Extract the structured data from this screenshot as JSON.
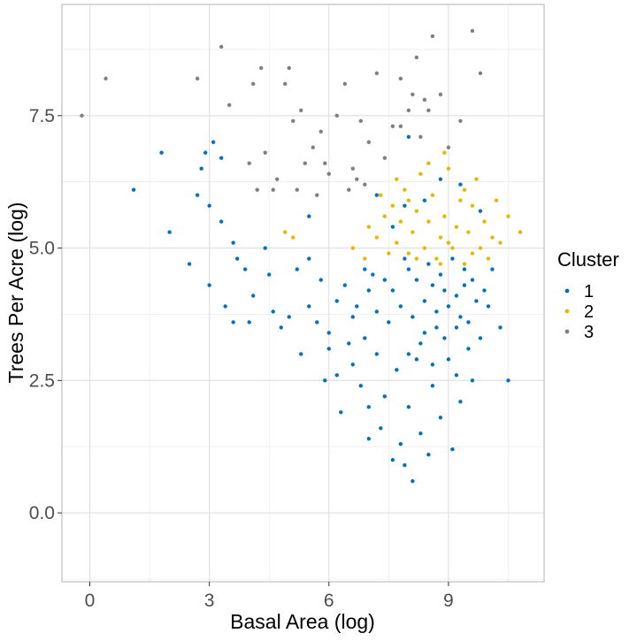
{
  "chart_data": {
    "type": "scatter",
    "title": "",
    "xlabel": "Basal Area (log)",
    "ylabel": "Trees Per Acre (log)",
    "xlim": [
      -0.7,
      11.4
    ],
    "ylim": [
      -1.3,
      9.6
    ],
    "x_ticks": [
      0,
      3,
      6,
      9
    ],
    "x_tick_labels": [
      "0",
      "3",
      "6",
      "9"
    ],
    "y_ticks": [
      0.0,
      2.5,
      5.0,
      7.5
    ],
    "y_tick_labels": [
      "0.0",
      "2.5",
      "5.0",
      "7.5"
    ],
    "grid": true,
    "legend_title": "Cluster",
    "legend_position": "right",
    "series": [
      {
        "name": "1",
        "color": "#0072BD",
        "points": [
          [
            1.1,
            6.1
          ],
          [
            1.8,
            6.8
          ],
          [
            2.0,
            5.3
          ],
          [
            2.5,
            4.7
          ],
          [
            2.7,
            6.0
          ],
          [
            2.8,
            6.5
          ],
          [
            2.9,
            6.8
          ],
          [
            3.0,
            5.8
          ],
          [
            3.0,
            4.3
          ],
          [
            3.1,
            7.0
          ],
          [
            3.3,
            5.5
          ],
          [
            3.4,
            3.9
          ],
          [
            3.6,
            3.6
          ],
          [
            3.6,
            5.1
          ],
          [
            3.7,
            4.8
          ],
          [
            3.9,
            4.6
          ],
          [
            4.1,
            4.1
          ],
          [
            4.4,
            5.0
          ],
          [
            4.5,
            4.5
          ],
          [
            4.6,
            3.8
          ],
          [
            5.0,
            3.7
          ],
          [
            5.2,
            4.6
          ],
          [
            5.3,
            3.0
          ],
          [
            5.5,
            4.8
          ],
          [
            5.8,
            4.4
          ],
          [
            5.7,
            3.6
          ],
          [
            6.0,
            3.4
          ],
          [
            6.2,
            2.6
          ],
          [
            6.4,
            4.3
          ],
          [
            6.5,
            3.2
          ],
          [
            6.6,
            2.8
          ],
          [
            6.7,
            3.9
          ],
          [
            6.8,
            2.4
          ],
          [
            6.9,
            3.3
          ],
          [
            7.0,
            2.0
          ],
          [
            7.1,
            4.5
          ],
          [
            7.2,
            3.0
          ],
          [
            7.3,
            1.6
          ],
          [
            7.4,
            2.2
          ],
          [
            7.5,
            3.6
          ],
          [
            7.6,
            1.0
          ],
          [
            7.7,
            2.7
          ],
          [
            7.8,
            1.3
          ],
          [
            7.9,
            0.9
          ],
          [
            8.0,
            2.0
          ],
          [
            8.1,
            0.6
          ],
          [
            8.2,
            2.9
          ],
          [
            8.3,
            1.5
          ],
          [
            8.4,
            3.4
          ],
          [
            8.5,
            1.1
          ],
          [
            8.6,
            2.4
          ],
          [
            8.7,
            3.8
          ],
          [
            8.8,
            1.8
          ],
          [
            8.9,
            4.2
          ],
          [
            9.0,
            2.9
          ],
          [
            9.1,
            1.2
          ],
          [
            9.2,
            3.5
          ],
          [
            9.3,
            2.1
          ],
          [
            9.4,
            4.6
          ],
          [
            9.5,
            3.1
          ],
          [
            9.6,
            2.5
          ],
          [
            9.7,
            4.0
          ],
          [
            9.8,
            3.3
          ],
          [
            10.0,
            3.9
          ],
          [
            10.1,
            4.6
          ],
          [
            10.3,
            3.5
          ],
          [
            10.5,
            2.5
          ],
          [
            7.9,
            4.8
          ],
          [
            8.2,
            4.4
          ],
          [
            8.5,
            4.7
          ],
          [
            8.8,
            4.5
          ],
          [
            9.1,
            4.8
          ],
          [
            9.4,
            4.3
          ],
          [
            7.8,
            3.9
          ],
          [
            8.1,
            3.7
          ],
          [
            8.4,
            4.0
          ],
          [
            8.7,
            3.5
          ],
          [
            9.0,
            3.9
          ],
          [
            9.3,
            3.7
          ],
          [
            7.6,
            4.2
          ],
          [
            8.0,
            4.6
          ],
          [
            8.6,
            4.3
          ],
          [
            9.2,
            4.1
          ],
          [
            9.6,
            4.4
          ],
          [
            9.9,
            4.2
          ],
          [
            8.3,
            3.2
          ],
          [
            8.9,
            3.3
          ],
          [
            9.5,
            3.6
          ],
          [
            8.0,
            3.0
          ],
          [
            8.6,
            2.8
          ],
          [
            9.2,
            2.6
          ],
          [
            6.2,
            4.0
          ],
          [
            6.6,
            3.7
          ],
          [
            7.0,
            4.2
          ],
          [
            7.4,
            4.4
          ],
          [
            7.2,
            3.8
          ],
          [
            6.9,
            4.6
          ],
          [
            4.8,
            3.5
          ],
          [
            5.5,
            3.9
          ],
          [
            6.0,
            3.1
          ],
          [
            5.9,
            2.5
          ],
          [
            6.3,
            1.9
          ],
          [
            7.0,
            1.4
          ],
          [
            7.6,
            5.4
          ],
          [
            7.9,
            5.8
          ],
          [
            8.4,
            5.9
          ],
          [
            8.8,
            6.3
          ],
          [
            9.3,
            6.2
          ],
          [
            9.8,
            5.7
          ],
          [
            5.5,
            5.6
          ],
          [
            4.0,
            3.6
          ],
          [
            8.0,
            7.1
          ],
          [
            7.2,
            6.0
          ],
          [
            3.3,
            6.7
          ]
        ]
      },
      {
        "name": "2",
        "color": "#E5B800",
        "points": [
          [
            4.9,
            5.3
          ],
          [
            5.1,
            5.2
          ],
          [
            6.6,
            5.0
          ],
          [
            6.9,
            4.8
          ],
          [
            7.0,
            5.4
          ],
          [
            7.2,
            5.2
          ],
          [
            7.4,
            5.6
          ],
          [
            7.5,
            4.9
          ],
          [
            7.6,
            5.8
          ],
          [
            7.7,
            5.1
          ],
          [
            7.8,
            5.5
          ],
          [
            7.9,
            6.1
          ],
          [
            8.0,
            4.9
          ],
          [
            8.1,
            5.3
          ],
          [
            8.2,
            5.7
          ],
          [
            8.3,
            6.4
          ],
          [
            8.4,
            5.0
          ],
          [
            8.5,
            5.5
          ],
          [
            8.6,
            6.0
          ],
          [
            8.7,
            4.8
          ],
          [
            8.8,
            5.2
          ],
          [
            8.9,
            5.6
          ],
          [
            9.0,
            6.5
          ],
          [
            9.1,
            5.0
          ],
          [
            9.2,
            5.4
          ],
          [
            9.3,
            5.9
          ],
          [
            9.4,
            4.7
          ],
          [
            9.5,
            5.3
          ],
          [
            9.6,
            5.8
          ],
          [
            9.7,
            6.3
          ],
          [
            9.8,
            5.0
          ],
          [
            9.9,
            5.5
          ],
          [
            10.0,
            4.8
          ],
          [
            10.1,
            5.2
          ],
          [
            10.2,
            5.9
          ],
          [
            10.3,
            5.1
          ],
          [
            10.5,
            5.6
          ],
          [
            10.8,
            5.3
          ],
          [
            8.0,
            5.9
          ],
          [
            8.5,
            6.6
          ],
          [
            9.0,
            5.1
          ],
          [
            9.4,
            6.1
          ],
          [
            8.2,
            4.8
          ],
          [
            8.8,
            4.7
          ],
          [
            9.6,
            4.9
          ],
          [
            7.3,
            6.0
          ],
          [
            7.7,
            6.3
          ],
          [
            8.9,
            6.8
          ]
        ]
      },
      {
        "name": "3",
        "color": "#7F7F7F",
        "points": [
          [
            -0.2,
            7.5
          ],
          [
            0.4,
            8.2
          ],
          [
            2.7,
            8.2
          ],
          [
            3.3,
            8.8
          ],
          [
            3.5,
            7.7
          ],
          [
            4.1,
            8.1
          ],
          [
            4.3,
            8.4
          ],
          [
            4.0,
            6.6
          ],
          [
            4.4,
            6.8
          ],
          [
            4.7,
            6.3
          ],
          [
            4.9,
            8.1
          ],
          [
            5.0,
            8.4
          ],
          [
            5.1,
            7.4
          ],
          [
            5.3,
            7.6
          ],
          [
            5.4,
            6.6
          ],
          [
            5.6,
            6.9
          ],
          [
            5.8,
            7.2
          ],
          [
            6.0,
            6.4
          ],
          [
            6.2,
            7.5
          ],
          [
            6.4,
            8.1
          ],
          [
            6.6,
            6.5
          ],
          [
            6.8,
            7.4
          ],
          [
            7.0,
            7.0
          ],
          [
            7.2,
            8.3
          ],
          [
            7.4,
            6.7
          ],
          [
            7.6,
            7.3
          ],
          [
            7.8,
            8.2
          ],
          [
            8.0,
            7.6
          ],
          [
            8.1,
            7.9
          ],
          [
            8.2,
            8.6
          ],
          [
            8.3,
            7.1
          ],
          [
            8.5,
            7.6
          ],
          [
            8.6,
            9.0
          ],
          [
            8.8,
            7.9
          ],
          [
            9.0,
            6.9
          ],
          [
            9.3,
            7.4
          ],
          [
            9.6,
            9.1
          ],
          [
            9.8,
            8.3
          ],
          [
            4.6,
            6.1
          ],
          [
            5.2,
            6.1
          ],
          [
            5.7,
            6.0
          ],
          [
            6.5,
            6.1
          ],
          [
            6.9,
            6.2
          ],
          [
            7.8,
            7.3
          ],
          [
            8.4,
            7.8
          ],
          [
            4.2,
            6.1
          ],
          [
            5.9,
            6.6
          ],
          [
            6.7,
            6.3
          ]
        ]
      }
    ]
  }
}
